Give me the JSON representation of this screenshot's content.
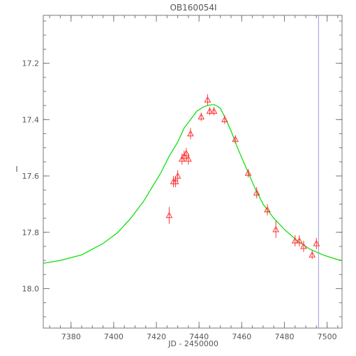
{
  "chart_data": {
    "type": "scatter",
    "title": "OB160054I",
    "xlabel": "JD - 2450000",
    "ylabel": "I",
    "xlim": [
      7367,
      7507
    ],
    "ylim": [
      18.14,
      17.03
    ],
    "x_ticks": [
      7380,
      7400,
      7420,
      7440,
      7460,
      7480,
      7500
    ],
    "y_ticks": [
      17.2,
      17.4,
      17.6,
      17.8,
      18.0
    ],
    "y_tick_labels": [
      "17.2",
      "17.4",
      "17.6",
      "17.8",
      "18.0"
    ],
    "minor_x_step": 5,
    "minor_y_step": 0.05,
    "grid": false,
    "vertical_line": {
      "x": 7496,
      "color": "#9999dd"
    },
    "model_curve": {
      "color": "#00dd00",
      "x": [
        7367,
        7375,
        7385,
        7395,
        7402,
        7408,
        7414,
        7418,
        7422,
        7426,
        7430,
        7433,
        7436,
        7439,
        7442,
        7444,
        7446,
        7447,
        7448,
        7450,
        7452,
        7455,
        7458,
        7462,
        7466,
        7470,
        7475,
        7480,
        7486,
        7492,
        7498,
        7504,
        7507
      ],
      "y": [
        17.91,
        17.9,
        17.88,
        17.84,
        17.8,
        17.75,
        17.69,
        17.64,
        17.59,
        17.53,
        17.48,
        17.43,
        17.4,
        17.37,
        17.355,
        17.35,
        17.347,
        17.347,
        17.35,
        17.36,
        17.39,
        17.44,
        17.5,
        17.57,
        17.64,
        17.7,
        17.75,
        17.79,
        17.83,
        17.86,
        17.88,
        17.895,
        17.9
      ]
    },
    "series": [
      {
        "color": "#ff3333",
        "marker": "triangle",
        "x": [
          7426,
          7428,
          7429,
          7430,
          7432,
          7433,
          7434,
          7435,
          7436,
          7441,
          7444,
          7445,
          7447,
          7452,
          7457,
          7463,
          7467,
          7472,
          7476,
          7485,
          7487,
          7489,
          7493,
          7495
        ],
        "y": [
          17.74,
          17.62,
          17.62,
          17.6,
          17.54,
          17.53,
          17.52,
          17.54,
          17.45,
          17.39,
          17.33,
          17.37,
          17.37,
          17.4,
          17.47,
          17.59,
          17.66,
          17.72,
          17.79,
          17.83,
          17.83,
          17.85,
          17.88,
          17.84
        ],
        "err": [
          0.03,
          0.02,
          0.02,
          0.02,
          0.02,
          0.02,
          0.02,
          0.02,
          0.02,
          0.015,
          0.02,
          0.015,
          0.015,
          0.015,
          0.015,
          0.015,
          0.02,
          0.02,
          0.03,
          0.02,
          0.02,
          0.02,
          0.015,
          0.02
        ]
      }
    ]
  }
}
